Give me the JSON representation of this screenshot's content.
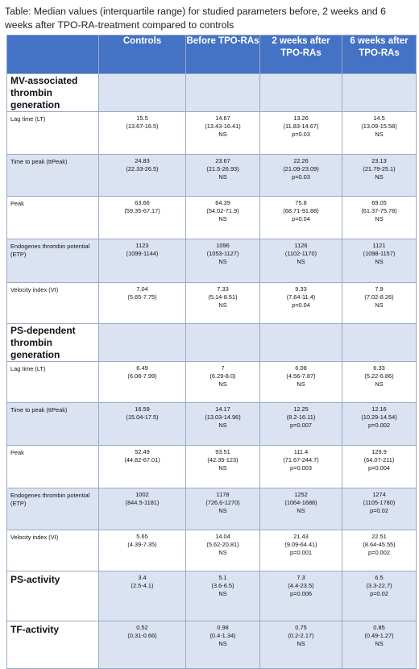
{
  "caption": "Table: Median values (interquartile range) for studied parameters before, 2 weeks and 6 weeks after TPO-RA-treatment compared to controls",
  "headers": [
    "",
    "Controls",
    "Before TPO-RAs",
    "2 weeks after TPO-RAs",
    "6 weeks after TPO-RAs"
  ],
  "sections": [
    {
      "title": "MV-associated thrombin generation",
      "rows": [
        {
          "label": "Lag time (LT)",
          "cells": [
            [
              "15.5",
              "(13.67-16.5)"
            ],
            [
              "14.67",
              "(13.43-16.41)",
              "NS"
            ],
            [
              "13.26",
              "(11.83-14.67)",
              "p=0.03"
            ],
            [
              "14.5",
              "(13.09-15.58)",
              "NS"
            ]
          ]
        },
        {
          "label": "Time to peak (ttPeak)",
          "cells": [
            [
              "24.83",
              "(22.33-26.5)"
            ],
            [
              "23.67",
              "(21.5-26.93)",
              "NS"
            ],
            [
              "22.26",
              "(21.09-23.09)",
              "p=0.03"
            ],
            [
              "23.13",
              "(21.79-25.1)",
              "NS"
            ]
          ]
        },
        {
          "label": "Peak",
          "cells": [
            [
              "63.66",
              "(59.35-67.17)"
            ],
            [
              "64.39",
              "(54.02-71.9)",
              "NS"
            ],
            [
              "75.8",
              "(68.71-91.88)",
              "p=0.04"
            ],
            [
              "69.05",
              "(61.37-75.78)",
              "NS"
            ]
          ]
        },
        {
          "label": "Endogenes thrombin potential (ETP)",
          "cells": [
            [
              "1123",
              "(1099-1144)"
            ],
            [
              "1096",
              "(1053-1127)",
              "NS"
            ],
            [
              "1126",
              "(1102-1170)",
              "NS"
            ],
            [
              "1121",
              "(1098-1157)",
              "NS"
            ]
          ]
        },
        {
          "label": "Velocity index (VI)",
          "cells": [
            [
              "7.04",
              "(5.65-7.75)"
            ],
            [
              "7.33",
              "(5.14-8.51)",
              "NS"
            ],
            [
              "9.33",
              "(7.64-11.4)",
              "p=0.04"
            ],
            [
              "7.9",
              "(7.02-8.26)",
              "NS"
            ]
          ]
        }
      ]
    },
    {
      "title": "PS-dependent thrombin generation",
      "rows": [
        {
          "label": "Lag time (LT)",
          "cells": [
            [
              "6.49",
              "(6.08-7.99)"
            ],
            [
              "7",
              "(6.29-8.0)",
              "NS"
            ],
            [
              "6.08",
              "(4.56-7.87)",
              "NS"
            ],
            [
              "6.33",
              "(5.22-6.86)",
              "NS"
            ]
          ]
        },
        {
          "label": "Time to peak (ttPeak)",
          "cells": [
            [
              "16.59",
              "(15.04-17.5)"
            ],
            [
              "14.17",
              "(13.03-14.96)",
              "NS"
            ],
            [
              "12.25",
              "(8.2-16.11)",
              "p=0.007"
            ],
            [
              "12.16",
              "(10.29-14.54)",
              "p=0.002"
            ]
          ]
        },
        {
          "label": "Peak",
          "cells": [
            [
              "52.49",
              "(44.82-67.01)"
            ],
            [
              "93.51",
              "(42.35-123)",
              "NS"
            ],
            [
              "111.4",
              "(71.67-244.7)",
              "p=0.003"
            ],
            [
              "129.9",
              "(64.07-211)",
              "p=0.004"
            ]
          ]
        },
        {
          "label": "Endogenes thrombin potential (ETP)",
          "cells": [
            [
              "1002",
              "(844.5-1181)"
            ],
            [
              "1178",
              "(726.6-1270)",
              "NS"
            ],
            [
              "1252",
              "(1064-1688)",
              "NS"
            ],
            [
              "1274",
              "(1105-1780)",
              "p=0.02"
            ]
          ]
        },
        {
          "label": "Velocity index (VI)",
          "cells": [
            [
              "5.65",
              "(4.39-7.35)"
            ],
            [
              "14.04",
              "(5.62-20.81)",
              "NS"
            ],
            [
              "21.43",
              "(9.09-64.41)",
              "p=0.001"
            ],
            [
              "22.51",
              "(8.64-45.55)",
              "p=0.002"
            ]
          ]
        }
      ]
    },
    {
      "title": "PS-activity",
      "inline": true,
      "cells": [
        [
          "3.4",
          "(2.5-4.1)"
        ],
        [
          "5.1",
          "(3.6-6.5)",
          "NS"
        ],
        [
          "7.3",
          "(4.4-23.5)",
          "p=0.006"
        ],
        [
          "6.5",
          "(3.3-22.7)",
          "p=0.02"
        ]
      ]
    },
    {
      "title": "TF-activity",
      "inline": true,
      "cells": [
        [
          "0.52",
          "(0.31-0.66)"
        ],
        [
          "0.98",
          "(0.4-1.34)",
          "NS"
        ],
        [
          "0.75",
          "(0.2-2.17)",
          "NS"
        ],
        [
          "0.85",
          "(0.49-1.27)",
          "NS"
        ]
      ]
    }
  ]
}
